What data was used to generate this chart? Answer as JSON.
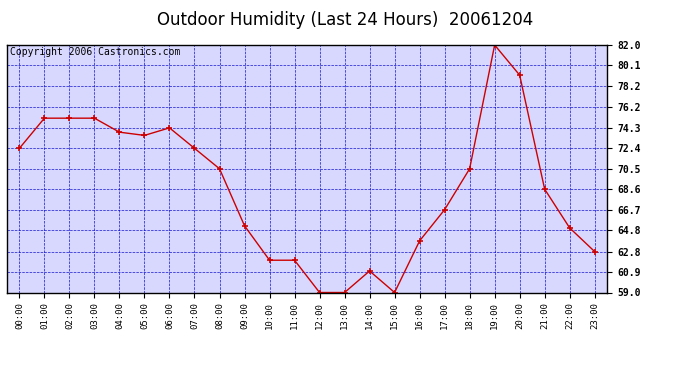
{
  "title": "Outdoor Humidity (Last 24 Hours)  20061204",
  "copyright": "Copyright 2006 Castronics.com",
  "x_labels": [
    "00:00",
    "01:00",
    "02:00",
    "03:00",
    "04:00",
    "05:00",
    "06:00",
    "07:00",
    "08:00",
    "09:00",
    "10:00",
    "11:00",
    "12:00",
    "13:00",
    "14:00",
    "15:00",
    "16:00",
    "17:00",
    "18:00",
    "19:00",
    "20:00",
    "21:00",
    "22:00",
    "23:00"
  ],
  "y_values": [
    72.4,
    75.2,
    75.2,
    75.2,
    73.9,
    73.6,
    74.3,
    72.4,
    70.5,
    65.2,
    62.0,
    62.0,
    59.0,
    59.0,
    61.0,
    59.0,
    63.8,
    66.7,
    70.5,
    82.0,
    79.2,
    68.6,
    65.0,
    62.8
  ],
  "ylim_min": 59.0,
  "ylim_max": 82.0,
  "yticks": [
    59.0,
    60.9,
    62.8,
    64.8,
    66.7,
    68.6,
    70.5,
    72.4,
    74.3,
    76.2,
    78.2,
    80.1,
    82.0
  ],
  "line_color": "#cc0000",
  "marker_color": "#cc0000",
  "bg_color": "#ffffff",
  "plot_bg_color": "#d8d8ff",
  "grid_color": "#0000cc",
  "border_color": "#000000",
  "title_color": "#000000",
  "copyright_color": "#000000",
  "title_fontsize": 12,
  "copyright_fontsize": 7
}
